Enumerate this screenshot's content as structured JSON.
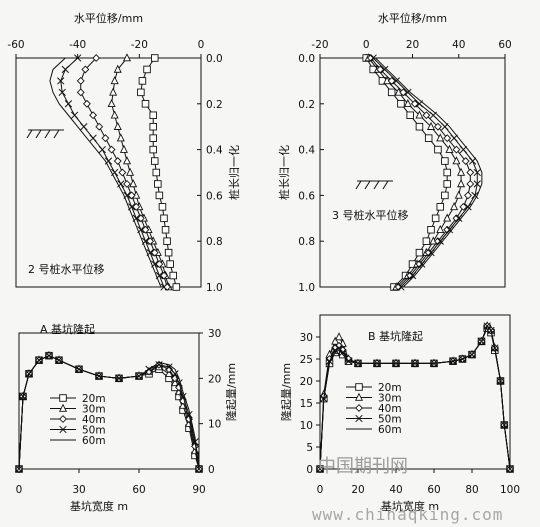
{
  "chart_data": [
    {
      "id": "pile2",
      "type": "line",
      "title": "水平位移/mm",
      "annotation": "2 号桩水平位移",
      "ylabel": "桩长归一化",
      "xlim": [
        -60,
        0
      ],
      "ylim": [
        0,
        1
      ],
      "y_inverted": true,
      "x_ticks": [
        "-60",
        "-40",
        "-20",
        "0"
      ],
      "y_ticks": [
        "0.0",
        "0.2",
        "0.4",
        "0.6",
        "0.8",
        "1.0"
      ],
      "y": [
        0.0,
        0.05,
        0.1,
        0.15,
        0.2,
        0.25,
        0.3,
        0.35,
        0.4,
        0.45,
        0.5,
        0.55,
        0.6,
        0.65,
        0.7,
        0.75,
        0.8,
        0.85,
        0.9,
        0.95,
        1.0
      ],
      "series": [
        {
          "name": "20m",
          "marker": "square",
          "values": [
            -15,
            -17.5,
            -19,
            -19.5,
            -18,
            -15.5,
            -15.5,
            -15.5,
            -15.5,
            -15,
            -14.5,
            -14,
            -13.5,
            -12.5,
            -12,
            -11.5,
            -11,
            -10.5,
            -10,
            -9,
            -8
          ]
        },
        {
          "name": "30m",
          "marker": "triangle",
          "values": [
            -24,
            -27,
            -28,
            -28.5,
            -29,
            -28,
            -27,
            -26,
            -25,
            -24,
            -23,
            -22,
            -21,
            -20,
            -18.5,
            -17,
            -15.5,
            -14,
            -12.5,
            -11.5,
            -10.5
          ]
        },
        {
          "name": "40m",
          "marker": "diamond",
          "values": [
            -34,
            -37.5,
            -39,
            -39,
            -37,
            -35,
            -33,
            -31,
            -29,
            -27,
            -25.5,
            -24,
            -22.5,
            -21,
            -19.5,
            -18,
            -16.5,
            -15,
            -13.5,
            -12,
            -11
          ]
        },
        {
          "name": "50m",
          "marker": "x",
          "values": [
            -40,
            -44,
            -45.5,
            -45,
            -43,
            -41,
            -38,
            -35,
            -32,
            -30,
            -28,
            -26,
            -24,
            -22.5,
            -21,
            -19.5,
            -18,
            -16.5,
            -15,
            -13.5,
            -12
          ]
        },
        {
          "name": "60m",
          "marker": "none",
          "values": [
            -44,
            -48,
            -49,
            -48,
            -46,
            -43,
            -40,
            -37,
            -34,
            -31,
            -29,
            -27,
            -25,
            -23.5,
            -22,
            -20.5,
            -19,
            -17.5,
            -16,
            -14.5,
            -13
          ]
        }
      ]
    },
    {
      "id": "pile3",
      "type": "line",
      "title": "水平位移/mm",
      "annotation": "3 号桩水平位移",
      "ylabel": "桩长归一化",
      "xlim": [
        -20,
        60
      ],
      "ylim": [
        0,
        1
      ],
      "y_inverted": true,
      "x_ticks": [
        "-20",
        "0",
        "20",
        "40",
        "60"
      ],
      "y_ticks": [
        "0.0",
        "0.2",
        "0.4",
        "0.6",
        "0.8",
        "1.0"
      ],
      "y": [
        0.0,
        0.05,
        0.1,
        0.15,
        0.2,
        0.25,
        0.3,
        0.35,
        0.4,
        0.45,
        0.5,
        0.55,
        0.6,
        0.65,
        0.7,
        0.75,
        0.8,
        0.85,
        0.9,
        0.95,
        1.0
      ],
      "series": [
        {
          "name": "20m",
          "marker": "square",
          "values": [
            0,
            3,
            7,
            11,
            15,
            19,
            23,
            27,
            31,
            34,
            35,
            35,
            34,
            32,
            30,
            28,
            26,
            23,
            20,
            17,
            12
          ]
        },
        {
          "name": "30m",
          "marker": "triangle",
          "values": [
            1,
            5,
            9,
            14,
            18,
            23,
            28,
            32,
            36,
            39,
            41,
            41,
            40,
            38,
            35,
            32,
            29,
            26,
            22,
            18,
            13
          ]
        },
        {
          "name": "40m",
          "marker": "diamond",
          "values": [
            2,
            6,
            11,
            16,
            21,
            26,
            31,
            35,
            39,
            43,
            45,
            45,
            44,
            42,
            39,
            35,
            31,
            27,
            23,
            19,
            14
          ]
        },
        {
          "name": "50m",
          "marker": "x",
          "values": [
            3,
            8,
            13,
            18,
            23,
            29,
            34,
            38,
            42,
            46,
            48,
            48,
            47,
            44,
            40,
            36,
            32,
            28,
            24,
            20,
            15
          ]
        },
        {
          "name": "60m",
          "marker": "none",
          "values": [
            4,
            9,
            14,
            19,
            25,
            31,
            36,
            40,
            44,
            48,
            50,
            50,
            48,
            45,
            41,
            37,
            33,
            29,
            25,
            21,
            16
          ]
        }
      ]
    },
    {
      "id": "heaveA",
      "type": "line",
      "title": "A 基坑隆起",
      "xlabel": "基坑宽度 m",
      "ylabel": "隆起量/mm",
      "xlim": [
        0,
        90
      ],
      "ylim": [
        0,
        30
      ],
      "x_ticks": [
        "0",
        "30",
        "60",
        "90"
      ],
      "y_ticks": [
        "0",
        "10",
        "20",
        "30"
      ],
      "legend_position": "lower-left",
      "x": [
        0,
        2,
        5,
        10,
        15,
        20,
        30,
        40,
        50,
        60,
        65,
        70,
        75,
        78,
        80,
        82,
        85,
        88,
        90
      ],
      "series": [
        {
          "name": "20m",
          "marker": "square",
          "values": [
            0,
            16,
            21,
            24,
            25,
            24,
            22,
            20.5,
            20,
            20.5,
            21,
            22,
            20,
            18,
            16,
            13,
            9,
            3,
            0
          ]
        },
        {
          "name": "30m",
          "marker": "triangle",
          "values": [
            0,
            16,
            21,
            24,
            25,
            24,
            22,
            20.5,
            20,
            20.5,
            21.5,
            22.5,
            21,
            19,
            17,
            14,
            10,
            4,
            0
          ]
        },
        {
          "name": "40m",
          "marker": "diamond",
          "values": [
            0,
            16,
            21,
            24,
            25,
            24,
            22,
            20.5,
            20,
            20.5,
            21.5,
            23,
            22,
            20,
            18,
            15,
            11,
            5,
            0
          ]
        },
        {
          "name": "50m",
          "marker": "x",
          "values": [
            0,
            16,
            21,
            24,
            25,
            24,
            22,
            20.5,
            20,
            20.5,
            22,
            23,
            22.5,
            21,
            19,
            16,
            12,
            6,
            0
          ]
        },
        {
          "name": "60m",
          "marker": "none",
          "values": [
            0,
            16,
            21,
            24,
            25,
            24,
            22,
            20.5,
            20,
            20.5,
            22,
            23.5,
            23,
            22,
            20,
            17,
            13,
            7,
            0
          ]
        }
      ]
    },
    {
      "id": "heaveB",
      "type": "line",
      "title": "B 基坑隆起",
      "xlabel": "基坑宽度 m",
      "ylabel": "隆起量/mm",
      "xlim": [
        0,
        100
      ],
      "ylim": [
        0,
        35
      ],
      "x_ticks": [
        "0",
        "20",
        "40",
        "60",
        "80",
        "100"
      ],
      "y_ticks": [
        "0",
        "5",
        "10",
        "15",
        "20",
        "25",
        "30"
      ],
      "legend_position": "lower-left",
      "x": [
        0,
        2,
        5,
        8,
        10,
        12,
        15,
        20,
        30,
        40,
        50,
        60,
        70,
        75,
        80,
        85,
        88,
        90,
        92,
        95,
        97,
        100
      ],
      "series": [
        {
          "name": "20m",
          "marker": "square",
          "values": [
            0,
            16,
            24,
            26.5,
            27,
            26,
            24.5,
            24,
            24,
            24,
            24,
            24,
            24.5,
            25,
            26,
            29,
            32,
            31,
            27,
            20,
            10,
            0
          ]
        },
        {
          "name": "30m",
          "marker": "triangle",
          "values": [
            0,
            17,
            26,
            29,
            30,
            28.5,
            25,
            24,
            24,
            24,
            24,
            24,
            24.5,
            25,
            26,
            29,
            32.5,
            31.5,
            27.5,
            20,
            10,
            0
          ]
        },
        {
          "name": "40m",
          "marker": "diamond",
          "values": [
            0,
            16.5,
            25,
            27.5,
            28,
            27,
            25,
            24,
            24,
            24,
            24,
            24,
            24.5,
            25,
            26,
            29,
            32.5,
            31.5,
            27.5,
            20,
            10,
            0
          ]
        },
        {
          "name": "50m",
          "marker": "x",
          "values": [
            0,
            16,
            24.5,
            27,
            27.5,
            26.5,
            24.5,
            24,
            24,
            24,
            24,
            24,
            24.5,
            25,
            26,
            29,
            32.5,
            31.5,
            27.5,
            20,
            10,
            0
          ]
        },
        {
          "name": "60m",
          "marker": "none",
          "values": [
            0,
            16,
            24,
            26.5,
            27,
            26,
            24.5,
            24,
            24,
            24,
            24,
            24,
            24.5,
            25,
            26,
            29,
            32.5,
            31.5,
            27.5,
            20,
            10,
            0
          ]
        }
      ]
    }
  ],
  "watermark": {
    "cn": "中国期刊网",
    "url": "www.chinaqking.com"
  },
  "colors": {
    "ink": "#111111",
    "watermark": "#9a9a9a",
    "background": "#f6f6f4"
  }
}
